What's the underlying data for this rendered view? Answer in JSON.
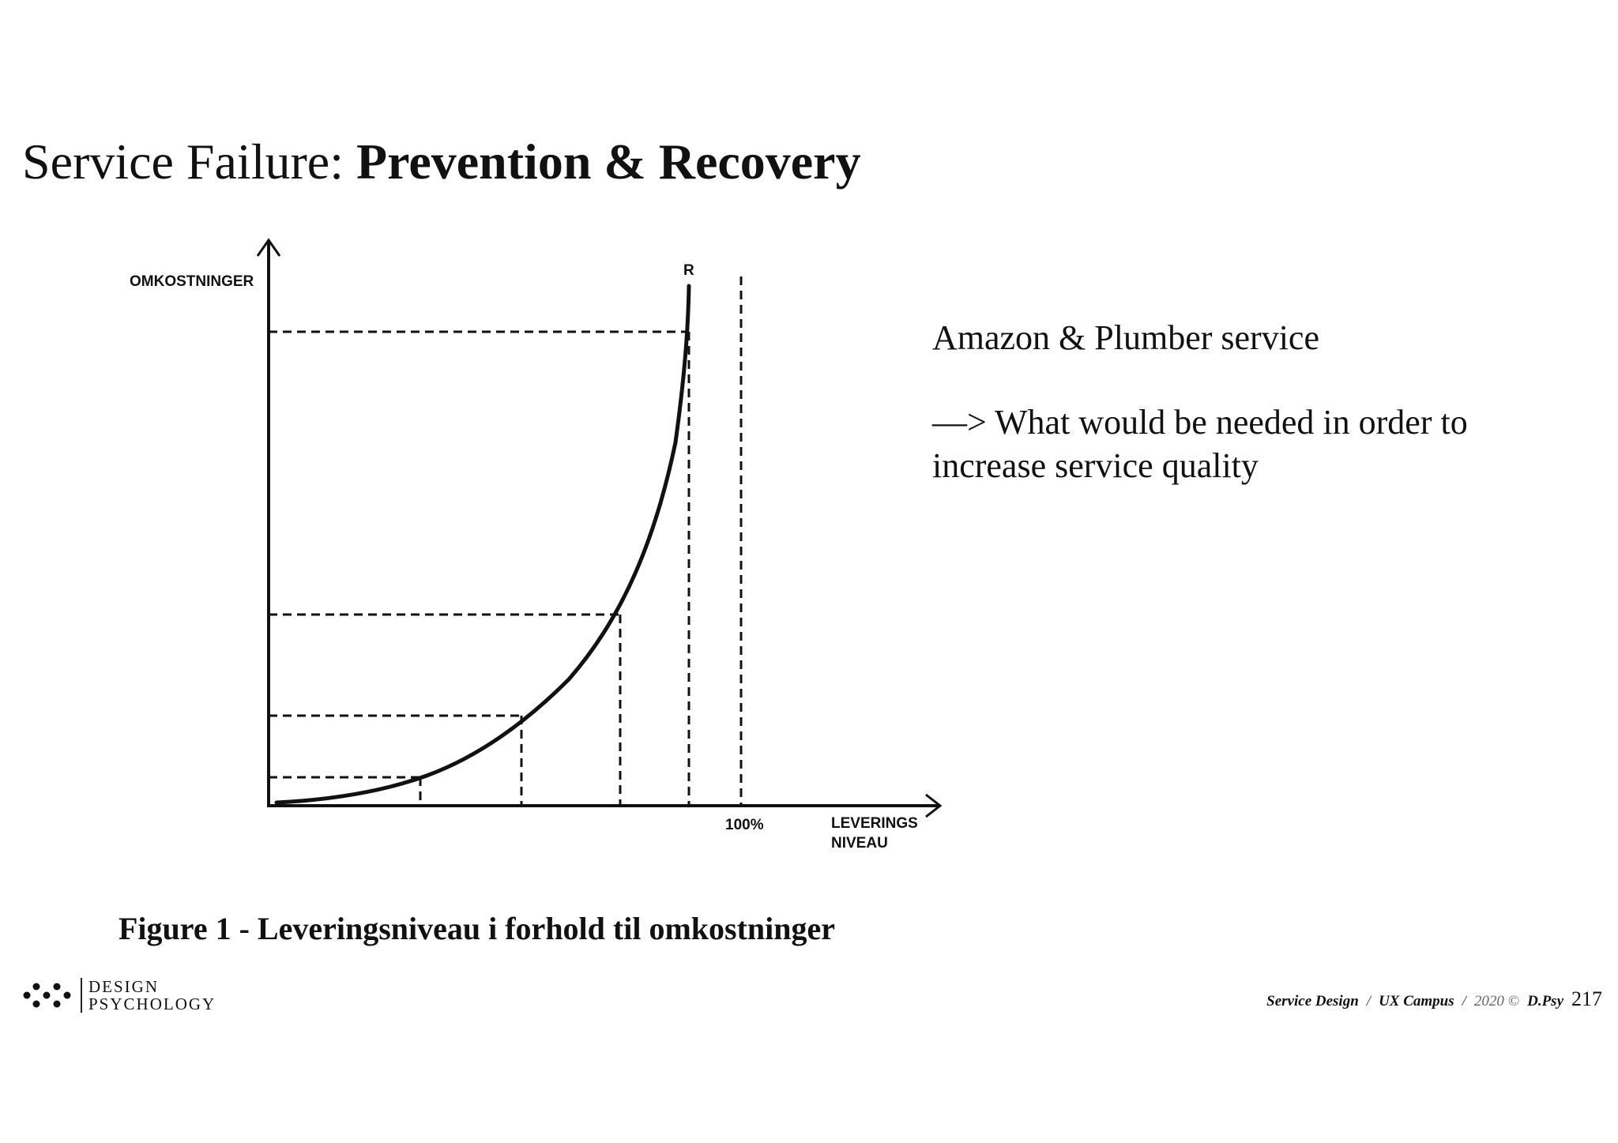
{
  "slide": {
    "title_regular": "Service Failure: ",
    "title_bold": "Prevention & Recovery"
  },
  "diagram": {
    "y_axis_label": "OMKOSTNINGER",
    "x_axis_label_line1": "LEVERINGS",
    "x_axis_label_line2": "NIVEAU",
    "curve_label": "R",
    "hundred_percent_label": "100%"
  },
  "side_text": {
    "line1": "Amazon & Plumber service",
    "line2": "—> What would be needed in order to increase service quality"
  },
  "caption": "Figure 1 - Leveringsniveau i forhold til omkostninger",
  "logo": {
    "line1": "DESIGN",
    "line2": "PSYCHOLOGY"
  },
  "footer": {
    "course": "Service Design",
    "sep1": "/",
    "campus": "UX Campus",
    "sep2": "/",
    "year": "2020 ©",
    "author": "D.Psy",
    "page_number": "217"
  }
}
